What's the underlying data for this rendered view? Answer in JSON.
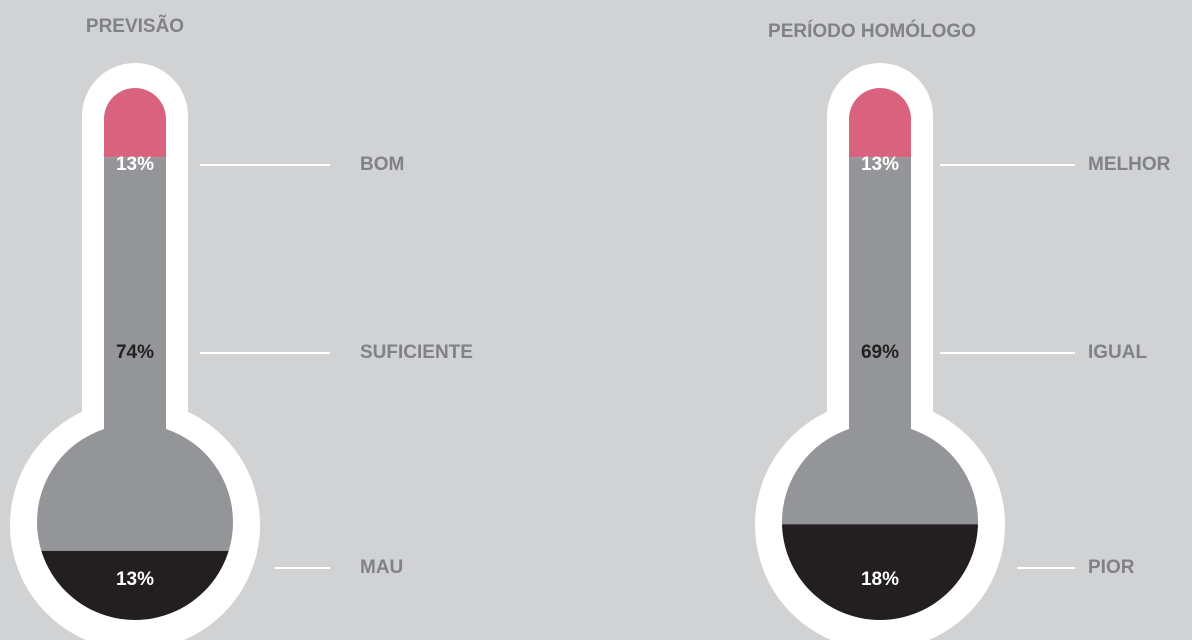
{
  "chart_data": [
    {
      "type": "thermometer",
      "title": "PREVISÃO",
      "categories": [
        "BOM",
        "SUFICIENTE",
        "MAU"
      ],
      "values": [
        13,
        74,
        13
      ],
      "value_labels": [
        "13%",
        "74%",
        "13%"
      ],
      "colors": [
        "#d9637f",
        "#939598",
        "#231f20"
      ]
    },
    {
      "type": "thermometer",
      "title": "PERÍODO HOMÓLOGO",
      "categories": [
        "MELHOR",
        "IGUAL",
        "PIOR"
      ],
      "values": [
        13,
        69,
        18
      ],
      "value_labels": [
        "13%",
        "69%",
        "18%"
      ],
      "colors": [
        "#d9637f",
        "#939598",
        "#231f20"
      ]
    }
  ]
}
